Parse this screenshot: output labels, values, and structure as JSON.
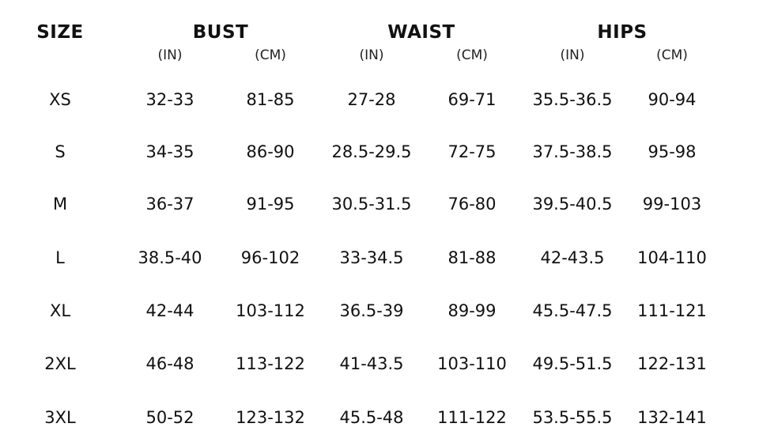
{
  "table": {
    "groups": [
      {
        "label": "SIZE"
      },
      {
        "label": "BUST"
      },
      {
        "label": "WAIST"
      },
      {
        "label": "HIPS"
      }
    ],
    "units": [
      "(IN)",
      "(CM)",
      "(IN)",
      "(CM)",
      "(IN)",
      "(CM)"
    ],
    "rows": [
      [
        "XS",
        "32-33",
        "81-85",
        "27-28",
        "69-71",
        "35.5-36.5",
        "90-94"
      ],
      [
        "S",
        "34-35",
        "86-90",
        "28.5-29.5",
        "72-75",
        "37.5-38.5",
        "95-98"
      ],
      [
        "M",
        "36-37",
        "91-95",
        "30.5-31.5",
        "76-80",
        "39.5-40.5",
        "99-103"
      ],
      [
        "L",
        "38.5-40",
        "96-102",
        "33-34.5",
        "81-88",
        "42-43.5",
        "104-110"
      ],
      [
        "XL",
        "42-44",
        "103-112",
        "36.5-39",
        "89-99",
        "45.5-47.5",
        "111-121"
      ],
      [
        "2XL",
        "46-48",
        "113-122",
        "41-43.5",
        "103-110",
        "49.5-51.5",
        "122-131"
      ],
      [
        "3XL",
        "50-52",
        "123-132",
        "45.5-48",
        "111-122",
        "53.5-55.5",
        "132-141"
      ]
    ]
  }
}
